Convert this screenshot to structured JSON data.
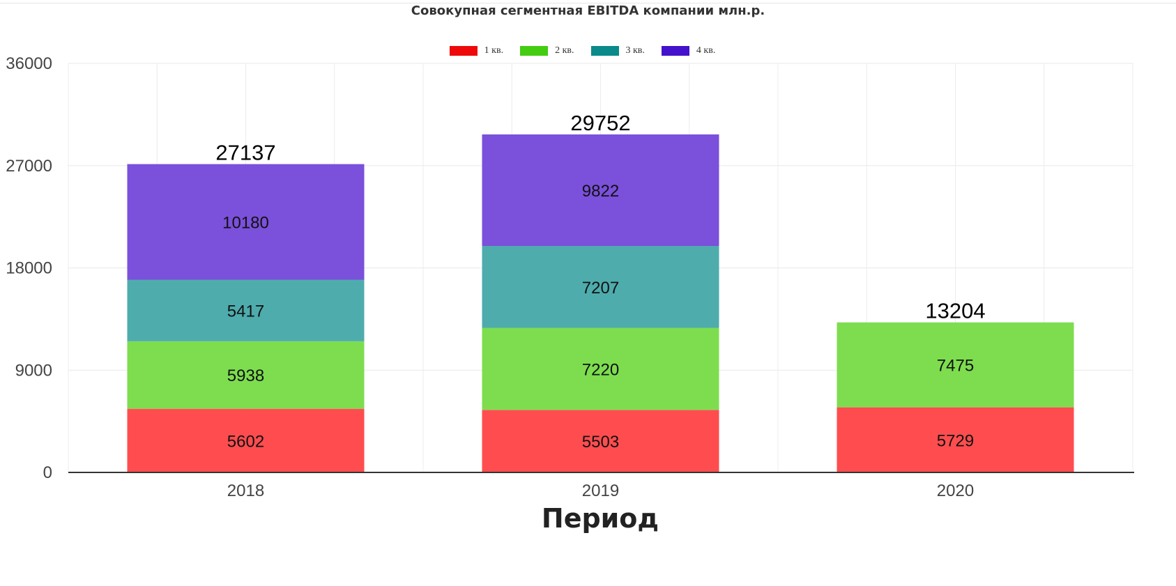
{
  "chart_data": {
    "type": "bar",
    "stacked": true,
    "title": "Совокупная сегментная EBITDA компании млн.р.",
    "xlabel": "Период",
    "ylabel": "",
    "categories": [
      "2018",
      "2019",
      "2020"
    ],
    "ylim": [
      0,
      36000
    ],
    "yticks": [
      0,
      9000,
      18000,
      27000,
      36000
    ],
    "grid": true,
    "legend_position": "top-center",
    "series": [
      {
        "name": "1 кв.",
        "legend_color": "#ee0a0a",
        "bar_color": "#ff4d4f",
        "values": [
          5602,
          5503,
          5729
        ]
      },
      {
        "name": "2 кв.",
        "legend_color": "#44cc11",
        "bar_color": "#7ddd4f",
        "values": [
          5938,
          7220,
          7475
        ]
      },
      {
        "name": "3 кв.",
        "legend_color": "#0a8a8a",
        "bar_color": "#4eacad",
        "values": [
          5417,
          7207,
          null
        ]
      },
      {
        "name": "4 кв.",
        "legend_color": "#4411cc",
        "bar_color": "#7b50db",
        "values": [
          10180,
          9822,
          null
        ]
      }
    ],
    "totals": [
      27137,
      29752,
      13204
    ]
  }
}
